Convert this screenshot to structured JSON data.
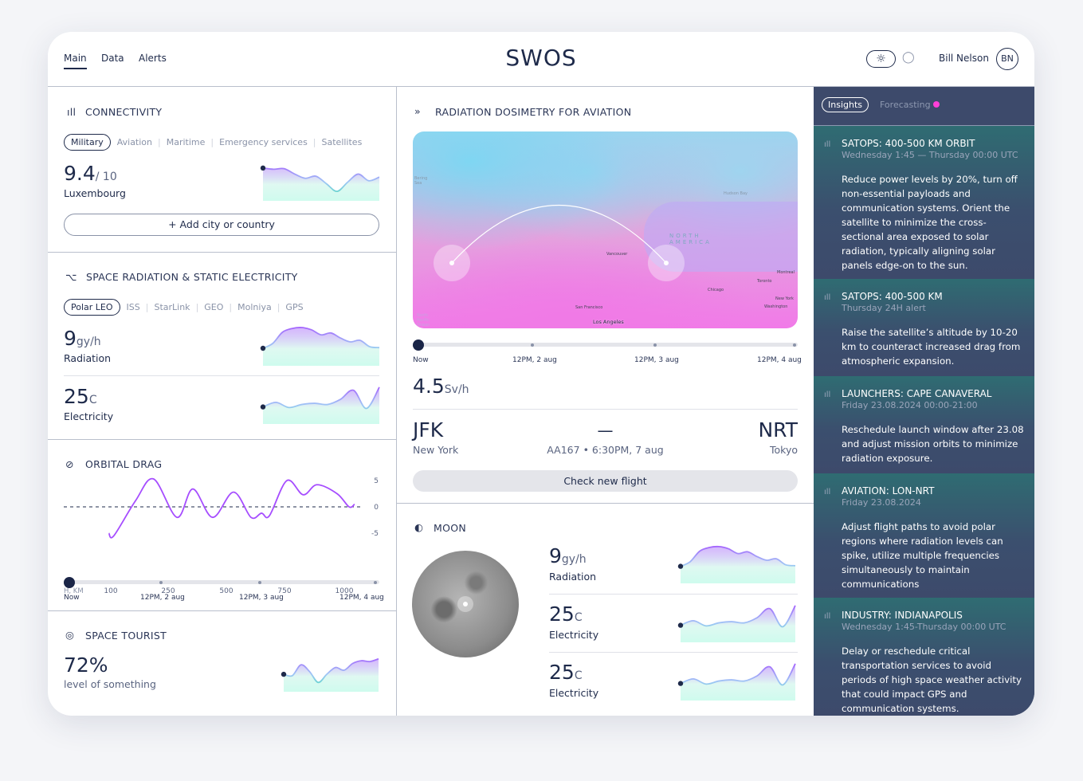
{
  "header": {
    "nav": [
      "Main",
      "Data",
      "Alerts"
    ],
    "active_nav": "Main",
    "title": "SWOS",
    "user_name": "Bill Nelson",
    "user_initials": "BN",
    "theme_icons": [
      "sun-icon",
      "moon-icon"
    ]
  },
  "connectivity": {
    "title": "CONNECTIVITY",
    "tabs": [
      "Military",
      "Aviation",
      "Maritime",
      "Emergency services",
      "Satellites"
    ],
    "active_tab": "Military",
    "value": "9.4",
    "unit": "/ 10",
    "label": "Luxembourg",
    "add_button": "Add city or country",
    "spark": [
      0.82,
      0.78,
      0.8,
      0.62,
      0.48,
      0.55,
      0.3,
      0.05,
      0.35,
      0.62,
      0.4,
      0.52
    ]
  },
  "space_radiation": {
    "title": "SPACE RADIATION & STATIC ELECTRICITY",
    "tabs": [
      "Polar LEO",
      "ISS",
      "StarLink",
      "GEO",
      "Molniya",
      "GPS"
    ],
    "active_tab": "Polar LEO",
    "metrics": [
      {
        "value": "9",
        "unit": "gy/h",
        "label": "Radiation",
        "spark": [
          0.3,
          0.45,
          0.8,
          0.92,
          0.95,
          0.88,
          0.72,
          0.78,
          0.62,
          0.5,
          0.55,
          0.35,
          0.32
        ]
      },
      {
        "value": "25",
        "unit": "C",
        "label": "Electricity",
        "spark": [
          0.3,
          0.45,
          0.28,
          0.38,
          0.42,
          0.38,
          0.55,
          0.85,
          0.25,
          0.95
        ]
      }
    ]
  },
  "orbital_drag": {
    "title": "ORBITAL DRAG",
    "x_label": "H, KM",
    "x_ticks": [
      100,
      250,
      500,
      750,
      1000
    ],
    "y_ticks": [
      5,
      0,
      -5
    ],
    "ylim": [
      -5,
      5
    ],
    "baseline": 0,
    "points": [
      [
        95,
        -5
      ],
      [
        108,
        -5.5
      ],
      [
        165,
        1.2
      ],
      [
        212,
        5.3
      ],
      [
        288,
        -2
      ],
      [
        356,
        3.4
      ],
      [
        441,
        -2
      ],
      [
        531,
        2.8
      ],
      [
        606,
        -2
      ],
      [
        651,
        -1.2
      ],
      [
        685,
        -1.7
      ],
      [
        760,
        5
      ],
      [
        828,
        2.3
      ],
      [
        886,
        4.2
      ],
      [
        970,
        2.5
      ],
      [
        1020,
        0
      ],
      [
        1043,
        0.5
      ]
    ],
    "timeline": [
      "Now",
      "12PM, 2 aug",
      "12PM, 3 aug",
      "12PM, 4 aug"
    ],
    "timeline_position": 0
  },
  "space_tourist": {
    "title": "SPACE TOURIST",
    "value": "72%",
    "label": "level of something",
    "spark": [
      0.35,
      0.3,
      0.7,
      0.45,
      0.05,
      0.35,
      0.6,
      0.5,
      0.75,
      0.85,
      0.82,
      0.92
    ]
  },
  "dosimetry": {
    "title": "RADIATION DOSIMETRY FOR AVIATION",
    "map_labels": [
      "Vancouver",
      "San Francisco",
      "Los Angeles",
      "Chicago",
      "Toronto",
      "Montreal",
      "New York",
      "Washington",
      "NORTH AMERICA",
      "Hudson Bay",
      "Bering Sea",
      "North Pacific Ocean"
    ],
    "timeline": [
      "Now",
      "12PM, 2 aug",
      "12PM, 3 aug",
      "12PM, 4 aug"
    ],
    "timeline_position": 0,
    "value": "4.5",
    "unit": "Sv/h",
    "flight": {
      "from_code": "JFK",
      "from_city": "New York",
      "to_code": "NRT",
      "to_city": "Tokyo",
      "dash": "—",
      "flight_info": "AA167 • 6:30PM, 7 aug"
    },
    "check_button": "Check new flight"
  },
  "moon": {
    "title": "MOON",
    "metrics": [
      {
        "value": "9",
        "unit": "gy/h",
        "label": "Radiation",
        "spark": [
          0.3,
          0.45,
          0.8,
          0.92,
          0.95,
          0.88,
          0.72,
          0.78,
          0.62,
          0.5,
          0.55,
          0.35,
          0.32
        ]
      },
      {
        "value": "25",
        "unit": "C",
        "label": "Electricity",
        "spark": [
          0.3,
          0.45,
          0.28,
          0.38,
          0.42,
          0.38,
          0.55,
          0.85,
          0.25,
          0.95
        ]
      },
      {
        "value": "25",
        "unit": "C",
        "label": "Electricity",
        "spark": [
          0.3,
          0.45,
          0.28,
          0.38,
          0.42,
          0.38,
          0.55,
          0.85,
          0.25,
          0.95
        ]
      }
    ]
  },
  "sidebar": {
    "tabs": [
      "Insights",
      "Forecasting"
    ],
    "active_tab": "Insights",
    "forecast_dot_color": "#ff3fd8",
    "insights": [
      {
        "title": "SATOPS: 400-500 KM ORBIT",
        "sub": "Wednesday 1:45 — Thursday 00:00 UTC",
        "text": "Reduce power levels by 20%, turn off non-essential payloads and communication systems. Orient the satellite to minimize the cross-sectional area exposed to solar radiation, typically aligning solar panels edge-on to the sun."
      },
      {
        "title": "SATOPS: 400-500 KM",
        "sub": "Thursday 24H alert",
        "text": "Raise the satellite’s altitude by 10-20 km to counteract increased drag from atmospheric expansion."
      },
      {
        "title": "LAUNCHERS: CAPE CANAVERAL",
        "sub": "Friday 23.08.2024 00:00-21:00",
        "text": "Reschedule launch window after 23.08 and adjust mission orbits to minimize radiation exposure."
      },
      {
        "title": "AVIATION: LON-NRT",
        "sub": "Friday 23.08.2024",
        "text": "Adjust flight paths to avoid polar regions where radiation levels can spike,  utilize multiple frequencies simultaneously to maintain communications"
      },
      {
        "title": "INDUSTRY: INDIANAPOLIS",
        "sub": "Wednesday 1:45-Thursday 00:00 UTC",
        "text": "Delay or reschedule critical transportation services to avoid periods of high space weather activity that could impact GPS and communication systems."
      }
    ]
  },
  "colors": {
    "accent_purple": "#a64dff",
    "accent_teal": "#3de0b0",
    "navy": "#1e2a4a",
    "sidebar_bg": "#3d4a6b"
  }
}
